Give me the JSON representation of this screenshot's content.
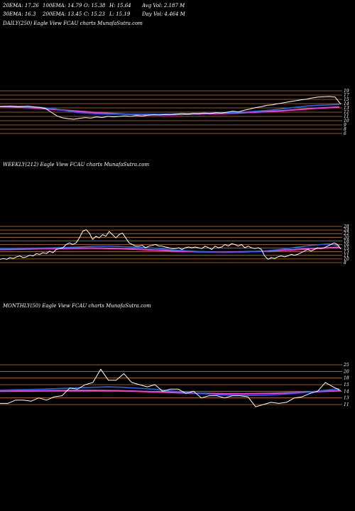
{
  "stats": {
    "ema20": "20EMA: 17.26",
    "ema100": "100EMA: 14.79",
    "open": "O: 15.38",
    "high": "H: 15.64",
    "avgvol": "Avg Vol: 2.187  M",
    "ema30": "30EMA: 16.3",
    "ema200": "200EMA: 13.45",
    "close": "C: 15.23",
    "low": "L: 15.19",
    "dayvol": "Day Vol: 4.464  M"
  },
  "colors": {
    "background": "#000000",
    "price": "#ffffff",
    "grid": "#c87533",
    "ema_fast": "#1e64ff",
    "ema_slow": "#ff3cc8"
  },
  "chart_data": [
    {
      "type": "line",
      "title": "DAILY(250) Eagle  View  FCAU  charts MunafaSutra.com",
      "ticks": [
        "19",
        "17",
        "15",
        "14",
        "13",
        "12",
        "11",
        "10",
        "9",
        "8",
        "6"
      ],
      "ylim": [
        5,
        20
      ],
      "series": [
        {
          "role": "price",
          "values": [
            14.4,
            14.5,
            14.6,
            14.4,
            14.5,
            14.6,
            14.3,
            14.2,
            13.8,
            12.5,
            11.2,
            10.5,
            10.2,
            10.0,
            10.3,
            10.6,
            10.4,
            10.8,
            10.6,
            11.0,
            10.8,
            11.0,
            11.2,
            11.0,
            11.3,
            11.1,
            11.4,
            11.6,
            11.5,
            11.7,
            11.6,
            11.8,
            12.0,
            11.8,
            12.1,
            12.0,
            12.2,
            12.0,
            12.3,
            12.2,
            12.5,
            12.8,
            12.6,
            13.2,
            13.6,
            14.1,
            14.4,
            14.9,
            15.1,
            15.5,
            15.8,
            16.2,
            16.5,
            16.8,
            17.1,
            17.5,
            17.8,
            17.9,
            18.0,
            17.8,
            15.23
          ]
        },
        {
          "role": "ema_fast",
          "values": [
            14.6,
            14.6,
            14.6,
            14.5,
            14.4,
            14.2,
            14.0,
            13.7,
            13.3,
            12.8,
            12.4,
            12.2,
            12.0,
            11.9,
            11.8,
            11.8,
            11.8,
            11.8,
            11.8,
            11.8,
            11.8,
            11.8,
            11.9,
            11.9,
            12.0,
            12.0,
            12.1,
            12.1,
            12.2,
            12.3,
            12.4,
            12.5,
            12.6,
            12.8,
            13.0,
            13.2,
            13.5,
            13.8,
            14.1,
            14.4,
            14.7,
            14.9,
            15.0,
            15.1,
            15.2
          ]
        },
        {
          "role": "ema_slow",
          "values": [
            14.5,
            14.4,
            14.2,
            14.0,
            13.7,
            13.4,
            13.1,
            12.8,
            12.5,
            12.2,
            12.0,
            11.8,
            11.7,
            11.6,
            11.6,
            11.6,
            11.7,
            11.8,
            11.9,
            12.0,
            12.1,
            12.2,
            12.4,
            12.6,
            12.8,
            13.0,
            13.3,
            13.6,
            13.9,
            14.1,
            14.3
          ]
        }
      ]
    },
    {
      "type": "line",
      "title": "WEEKLY(212) Eagle  View  FCAU  charts MunafaSutra.com",
      "ticks": [
        "28",
        "24",
        "22",
        "20",
        "18",
        "16",
        "15",
        "13",
        "11",
        "10",
        "8"
      ],
      "ylim": [
        7,
        29
      ],
      "series": [
        {
          "role": "price",
          "values": [
            9,
            9.5,
            9,
            10,
            9.5,
            10.5,
            11,
            10,
            10.5,
            11.5,
            11,
            12.5,
            12,
            13,
            12.5,
            14,
            13,
            15,
            15.5,
            16,
            18,
            19,
            18,
            19,
            22,
            26,
            27,
            25,
            21,
            23,
            22,
            24,
            23,
            26,
            24,
            22,
            24,
            25,
            22,
            19,
            18,
            17,
            17,
            17.5,
            16,
            17,
            17.5,
            18,
            17,
            17,
            16.5,
            16,
            15.5,
            15.5,
            16,
            15,
            16,
            16.5,
            16,
            16.5,
            16,
            15.5,
            17,
            16,
            15,
            17,
            16,
            16.5,
            18,
            17,
            18.5,
            18,
            17,
            18,
            16,
            17,
            16,
            15.5,
            16,
            15,
            11,
            9,
            10,
            9.5,
            10.5,
            11,
            10.5,
            11,
            12,
            11.5,
            12,
            13,
            14,
            15,
            14,
            15,
            16,
            15.5,
            16,
            17,
            18,
            19,
            18,
            15.23
          ]
        },
        {
          "role": "ema_fast",
          "values": [
            15.5,
            15.6,
            15.7,
            15.8,
            15.9,
            16,
            16.2,
            16.5,
            16.8,
            17,
            17,
            16.8,
            16.5,
            16.2,
            15.8,
            15.2,
            14.6,
            14.2,
            13.8,
            13.5,
            13.3,
            13.3,
            13.4,
            13.6,
            14,
            14.6,
            15.3,
            16.2,
            17.2,
            17.8,
            18.4,
            17.2
          ]
        },
        {
          "role": "ema_slow",
          "values": [
            15,
            15.1,
            15.3,
            15.5,
            15.6,
            15.7,
            15.8,
            15.7,
            15.5,
            15.2,
            14.8,
            14.4,
            14,
            13.7,
            13.5,
            13.4,
            13.5,
            13.7,
            14,
            14.4,
            14.9,
            15.4,
            15.9,
            16.3
          ]
        }
      ]
    },
    {
      "type": "line",
      "title": "MONTHLY(50) Eagle  View  FCAU  charts MunafaSutra.com",
      "ticks": [
        "25",
        "20",
        "18",
        "15",
        "14",
        "13",
        "11"
      ],
      "ylim": [
        9,
        27
      ],
      "series": [
        {
          "role": "price",
          "values": [
            9.5,
            9.5,
            11,
            11,
            10.5,
            12,
            11,
            12.5,
            13,
            16.5,
            16,
            18,
            19,
            25,
            20,
            20,
            23,
            19,
            18,
            17,
            18,
            15,
            16,
            16,
            14,
            15,
            12,
            13,
            13,
            12,
            13,
            13,
            12.5,
            8,
            9,
            10,
            9.5,
            10,
            12,
            12.5,
            14,
            15,
            19,
            17,
            15.23
          ]
        },
        {
          "role": "ema_fast",
          "values": [
            15.5,
            15.7,
            15.8,
            16,
            16.3,
            16.6,
            16.8,
            17,
            16.8,
            16.4,
            15.9,
            15.3,
            14.6,
            14,
            13.5,
            13.2,
            13.1,
            13.2,
            13.5,
            14,
            14.6,
            15.4,
            16.2
          ]
        },
        {
          "role": "ema_slow",
          "values": [
            15,
            15.1,
            15.2,
            15.3,
            15.4,
            15.4,
            15.3,
            15.1,
            14.8,
            14.5,
            14.2,
            14,
            13.9,
            13.9,
            14,
            14.2,
            14.5,
            14.9,
            15.3
          ]
        }
      ]
    }
  ]
}
